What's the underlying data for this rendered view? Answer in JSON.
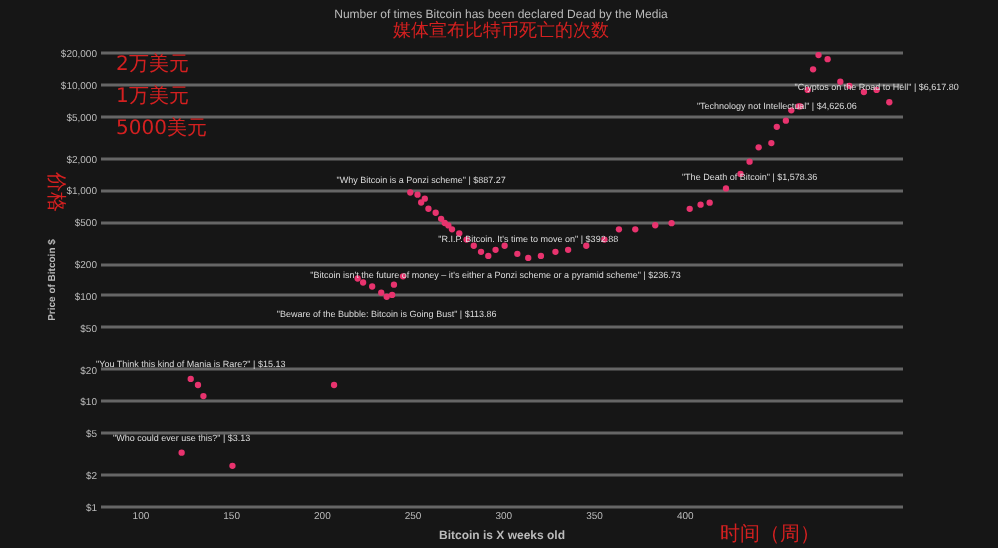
{
  "chart_data": {
    "type": "scatter",
    "title": "Number of times Bitcoin has been declared Dead by the Media",
    "subtitle": "媒体宣布比特币死亡的次数",
    "xlabel": "Bitcoin is X weeks old",
    "ylabel": "Price of Bitcoin $",
    "log": "y",
    "grid": "y",
    "marker": "circle",
    "xlim": [
      78,
      520
    ],
    "xticks": [
      100,
      150,
      200,
      250,
      300,
      350,
      400
    ],
    "ylim": [
      1,
      20000
    ],
    "yticks": [
      {
        "value": 1,
        "label": "$1"
      },
      {
        "value": 2,
        "label": "$2"
      },
      {
        "value": 5,
        "label": "$5"
      },
      {
        "value": 10,
        "label": "$10"
      },
      {
        "value": 20,
        "label": "$20"
      },
      {
        "value": 50,
        "label": "$50"
      },
      {
        "value": 100,
        "label": "$100"
      },
      {
        "value": 200,
        "label": "$200"
      },
      {
        "value": 500,
        "label": "$500"
      },
      {
        "value": 1000,
        "label": "$1,000"
      },
      {
        "value": 2000,
        "label": "$2,000"
      },
      {
        "value": 5000,
        "label": "$5,000"
      },
      {
        "value": 10000,
        "label": "$10,000"
      },
      {
        "value": 20000,
        "label": "$20,000"
      }
    ],
    "series": [
      {
        "color": "#e8336e",
        "x": [
          123,
          128,
          132,
          135,
          151,
          207,
          220,
          223,
          228,
          233,
          236,
          239,
          240,
          245,
          249,
          253,
          255,
          257,
          259,
          263,
          266,
          268,
          270,
          272,
          276,
          280,
          284,
          288,
          292,
          296,
          301,
          308,
          314,
          321,
          329,
          336,
          346,
          356,
          364,
          373,
          384,
          393,
          403,
          409,
          414,
          423,
          431,
          436,
          441,
          448,
          451,
          456,
          459,
          463,
          464,
          468,
          471,
          474,
          479,
          486,
          491,
          499,
          506,
          513
        ],
        "values": [
          3.2,
          16,
          14,
          11,
          2.4,
          14,
          143,
          131,
          120,
          105,
          96,
          100,
          125,
          150,
          933,
          890,
          750,
          815,
          655,
          600,
          525,
          480,
          455,
          418,
          383,
          334,
          292,
          256,
          234,
          267,
          292,
          245,
          224,
          234,
          256,
          267,
          292,
          334,
          418,
          418,
          457,
          478,
          654,
          715,
          748,
          1020,
          1400,
          1830,
          2500,
          2740,
          3910,
          4470,
          5600,
          6110,
          6110,
          8750,
          13700,
          18700,
          17100,
          10450,
          9570,
          8360,
          8750,
          6680
        ]
      }
    ],
    "annotations": [
      {
        "text": "\"Who could ever use this?\" | $3.13",
        "x": 123,
        "y": 3.2
      },
      {
        "text": "\"You Think this kind of Mania is Rare?\" | $15.13",
        "x": 128,
        "y": 16
      },
      {
        "text": "\"Beware of the Bubble: Bitcoin is Going Bust\" | $113.86",
        "x": 236,
        "y": 96
      },
      {
        "text": "\"Why Bitcoin is a Ponzi scheme\" | $887.27",
        "x": 255,
        "y": 890
      },
      {
        "text": "\"R.I.P. Bitcoin. It's time to move on\" | $392.88",
        "x": 314,
        "y": 245
      },
      {
        "text": "\"Bitcoin isn't the future of money – it's either a Ponzi scheme or a pyramid scheme\" | $236.73",
        "x": 296,
        "y": 234
      },
      {
        "text": "\"The Death of Bitcoin\" | $1,578.36",
        "x": 436,
        "y": 1830
      },
      {
        "text": "\"Technology not Intellectual\" | $4,626.06",
        "x": 451,
        "y": 4470
      },
      {
        "text": "\"Cryptos on the Road to Hell\" | $6,617.80",
        "x": 506,
        "y": 6680
      },
      "2万美元",
      "1万美元",
      "5000美元",
      "价格",
      "时间（周）"
    ]
  }
}
